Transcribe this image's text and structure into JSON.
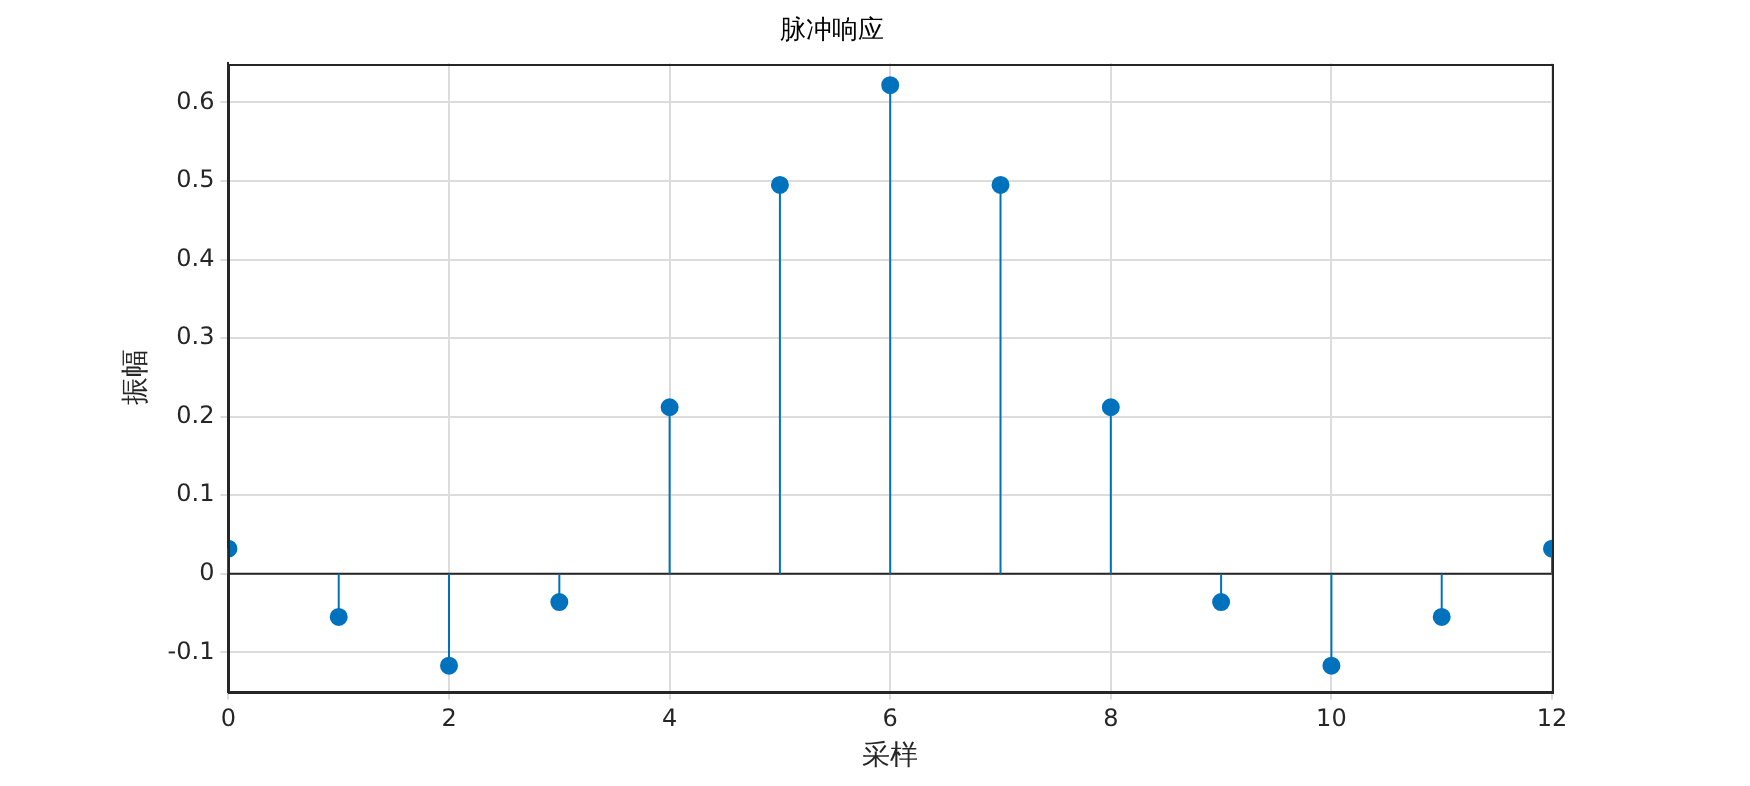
{
  "chart_data": {
    "type": "lollipop",
    "title": "脉冲响应",
    "xlabel": "采样",
    "ylabel": "振幅",
    "x": [
      0,
      1,
      2,
      3,
      4,
      5,
      6,
      7,
      8,
      9,
      10,
      11,
      12
    ],
    "values": [
      0.032,
      -0.055,
      -0.117,
      -0.036,
      0.212,
      0.495,
      0.622,
      0.495,
      0.212,
      -0.036,
      -0.117,
      -0.055,
      0.032
    ],
    "color": "#0072bd",
    "marker": "circle",
    "xlim": [
      0,
      12
    ],
    "xticks": [
      0,
      2,
      4,
      6,
      8,
      10,
      12
    ],
    "ylim": [
      -0.15,
      0.65
    ],
    "yticks": [
      -0.1,
      0,
      0.1,
      0.2,
      0.3,
      0.4,
      0.5,
      0.6
    ],
    "ref_lines": [
      {
        "axis": "y",
        "value": 0,
        "color": "#262626"
      }
    ],
    "grid": true,
    "legend": false
  }
}
